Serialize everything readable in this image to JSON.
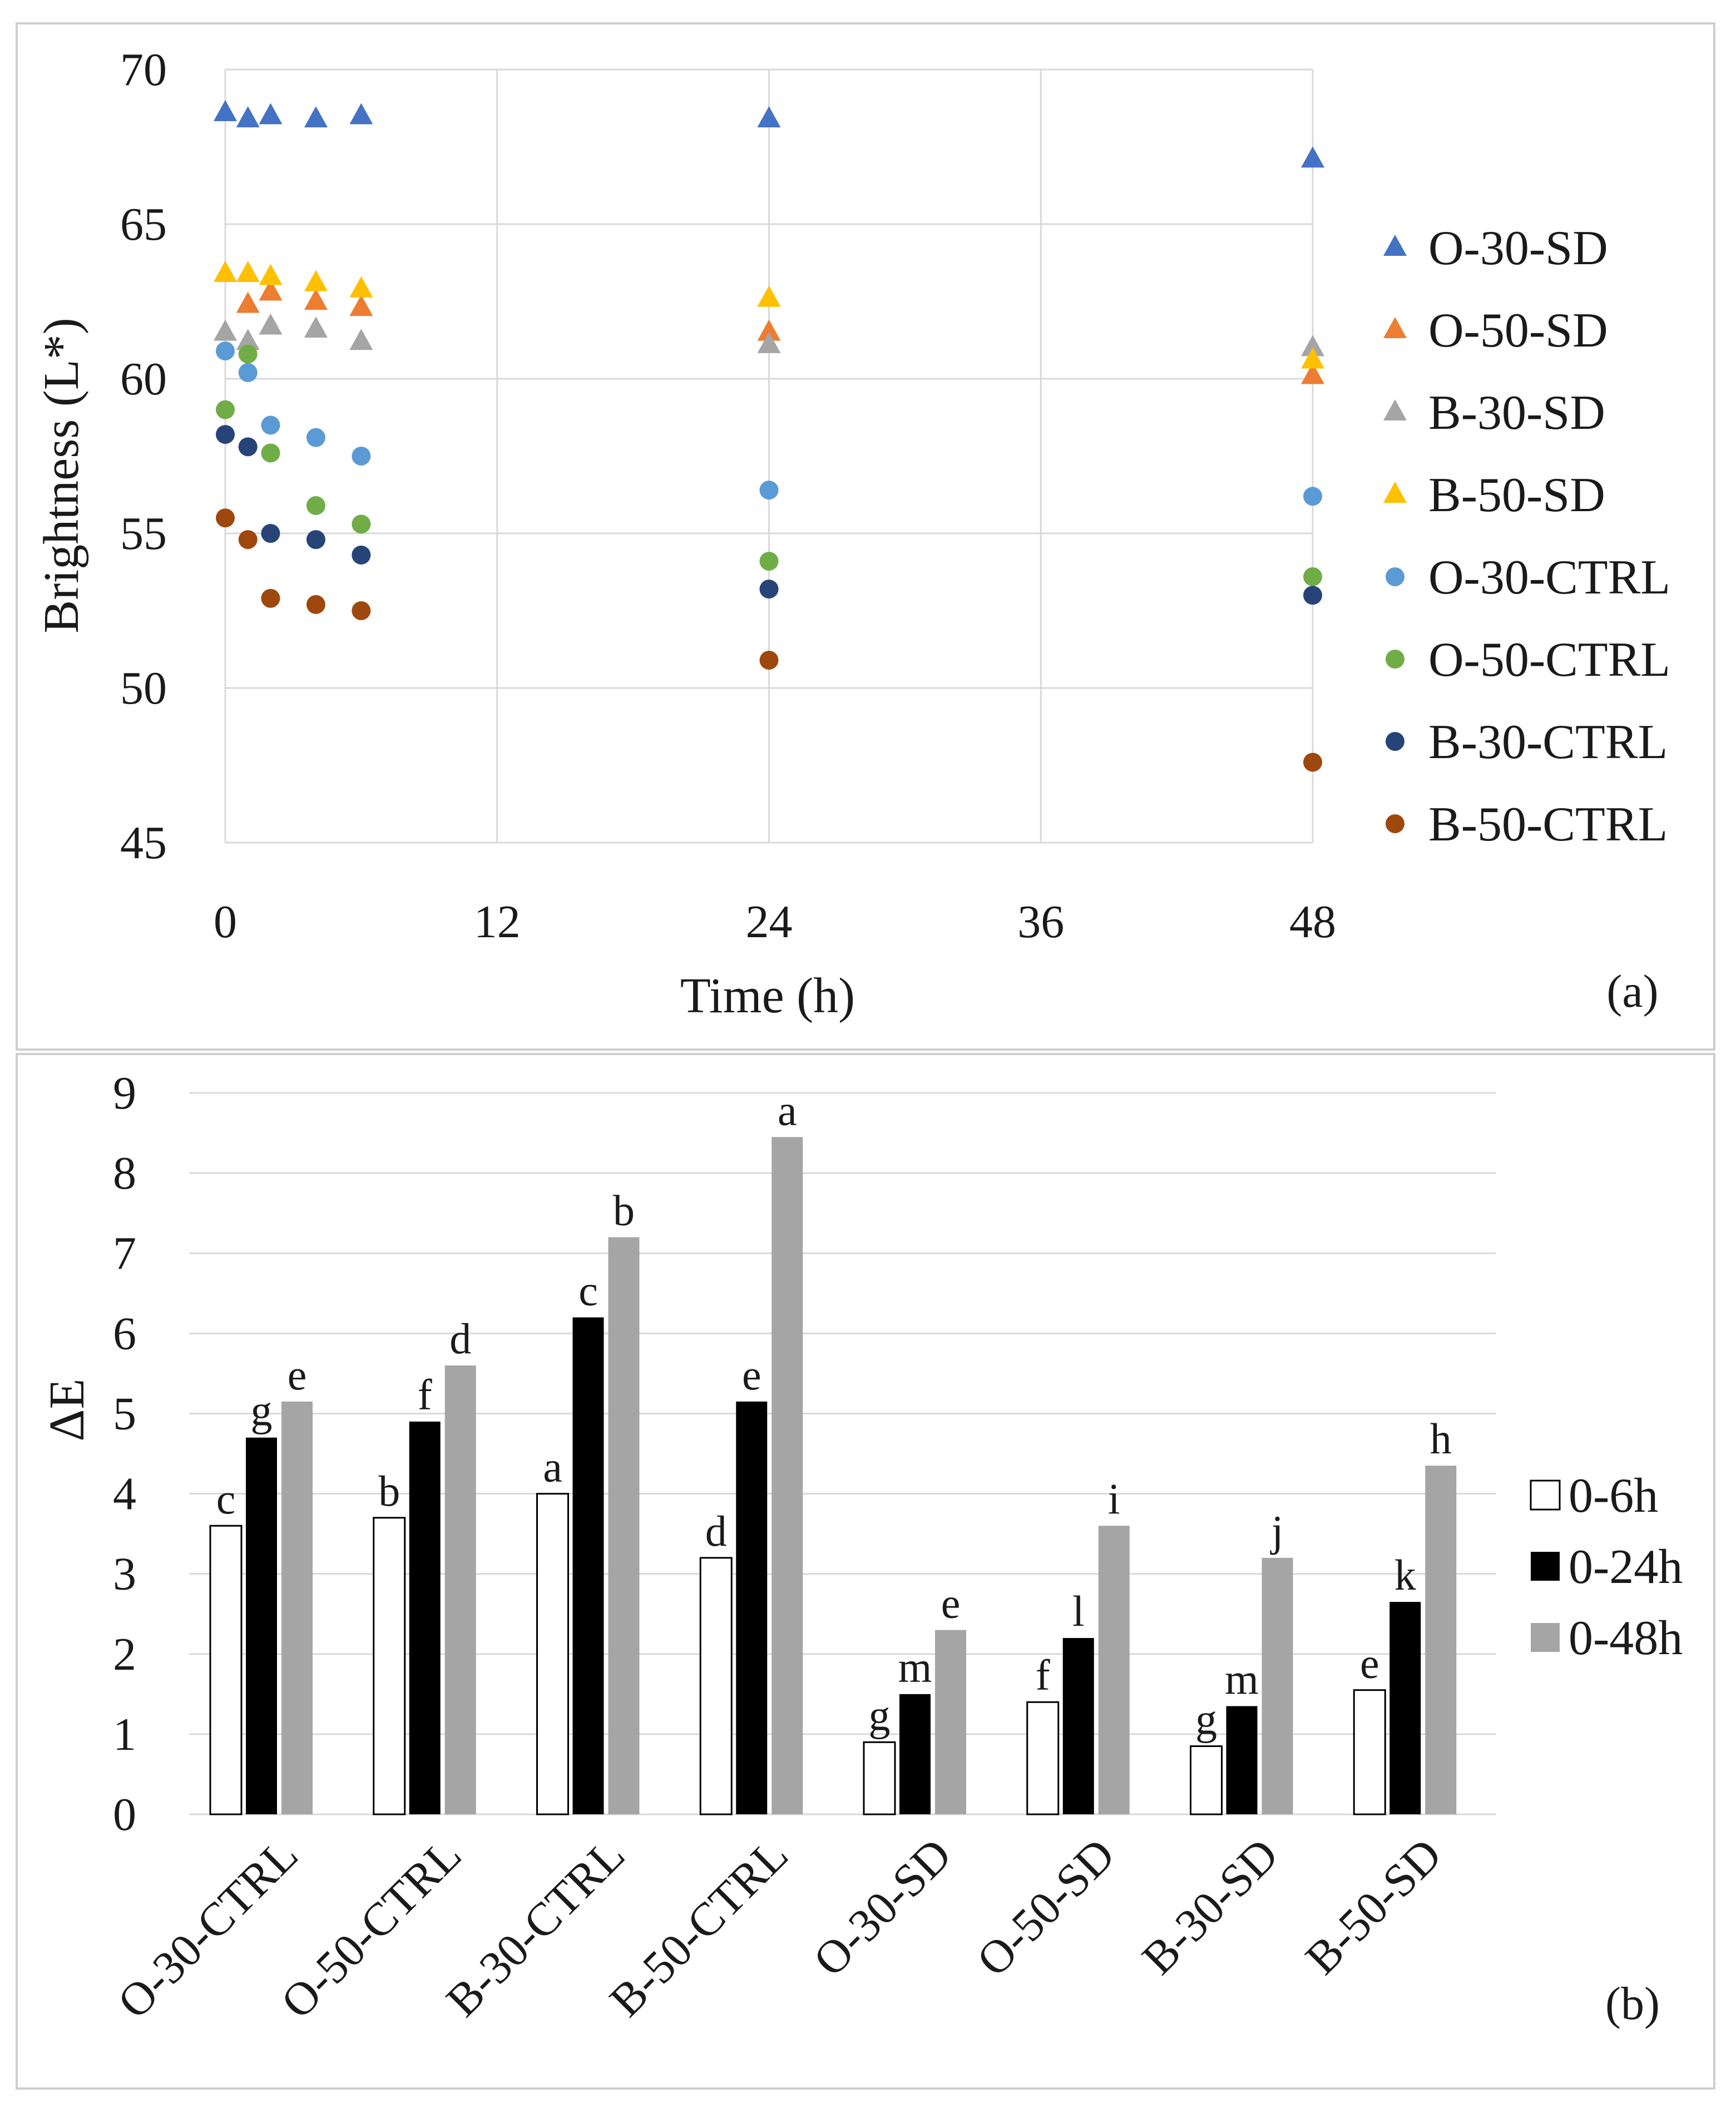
{
  "colors": {
    "O-30-SD": "#4472c4",
    "O-50-SD": "#ed7d31",
    "B-30-SD": "#a5a5a5",
    "B-50-SD": "#ffc000",
    "O-30-CTRL": "#5b9bd5",
    "O-50-CTRL": "#70ad47",
    "B-30-CTRL": "#264478",
    "B-50-CTRL": "#9e480e",
    "bar_0_6h": "#ffffff",
    "bar_0_24h": "#000000",
    "bar_0_48h": "#a5a5a5"
  },
  "chart_data": [
    {
      "type": "scatter",
      "panel_label": "(a)",
      "title": "",
      "xlabel": "Time (h)",
      "ylabel": "Brightness (L*)",
      "xlim": [
        0,
        48
      ],
      "ylim": [
        45,
        70
      ],
      "xticks": [
        0,
        12,
        24,
        36,
        48
      ],
      "yticks": [
        45,
        50,
        55,
        60,
        65,
        70
      ],
      "grid": true,
      "legend_position": "right",
      "series": [
        {
          "name": "O-30-SD",
          "marker": "triangle",
          "x": [
            0,
            1,
            2,
            4,
            6,
            24,
            48
          ],
          "y": [
            68.6,
            68.4,
            68.5,
            68.4,
            68.5,
            68.4,
            67.1
          ]
        },
        {
          "name": "O-50-SD",
          "marker": "triangle",
          "x": [
            0,
            1,
            2,
            4,
            6,
            24,
            48
          ],
          "y": [
            63.4,
            62.4,
            62.8,
            62.5,
            62.3,
            61.5,
            60.1
          ]
        },
        {
          "name": "B-30-SD",
          "marker": "triangle",
          "x": [
            0,
            1,
            2,
            4,
            6,
            24,
            48
          ],
          "y": [
            61.5,
            61.2,
            61.7,
            61.6,
            61.2,
            61.1,
            61.0
          ]
        },
        {
          "name": "B-50-SD",
          "marker": "triangle",
          "x": [
            0,
            1,
            2,
            4,
            6,
            24,
            48
          ],
          "y": [
            63.4,
            63.4,
            63.3,
            63.1,
            62.9,
            62.6,
            60.6
          ]
        },
        {
          "name": "O-30-CTRL",
          "marker": "circle",
          "x": [
            0,
            1,
            2,
            4,
            6,
            24,
            48
          ],
          "y": [
            60.9,
            60.2,
            58.5,
            58.1,
            57.5,
            56.4,
            56.2
          ]
        },
        {
          "name": "O-50-CTRL",
          "marker": "circle",
          "x": [
            0,
            1,
            2,
            4,
            6,
            24,
            48
          ],
          "y": [
            59.0,
            60.8,
            57.6,
            55.9,
            55.3,
            54.1,
            53.6
          ]
        },
        {
          "name": "B-30-CTRL",
          "marker": "circle",
          "x": [
            0,
            1,
            2,
            4,
            6,
            24,
            48
          ],
          "y": [
            58.2,
            57.8,
            55.0,
            54.8,
            54.3,
            53.2,
            53.0
          ]
        },
        {
          "name": "B-50-CTRL",
          "marker": "circle",
          "x": [
            0,
            1,
            2,
            4,
            6,
            24,
            48
          ],
          "y": [
            55.5,
            54.8,
            52.9,
            52.7,
            52.5,
            50.9,
            47.6
          ]
        }
      ]
    },
    {
      "type": "bar",
      "panel_label": "(b)",
      "title": "",
      "xlabel": "",
      "ylabel": "ΔE",
      "ylim": [
        0,
        9
      ],
      "yticks": [
        0,
        1,
        2,
        3,
        4,
        5,
        6,
        7,
        8,
        9
      ],
      "grid": true,
      "legend_position": "right",
      "categories": [
        "O-30-CTRL",
        "O-50-CTRL",
        "B-30-CTRL",
        "B-50-CTRL",
        "O-30-SD",
        "O-50-SD",
        "B-30-SD",
        "B-50-SD"
      ],
      "series": [
        {
          "name": "0-6h",
          "values": [
            3.6,
            3.7,
            4.0,
            3.2,
            0.9,
            1.4,
            0.85,
            1.55
          ],
          "letters": [
            "c",
            "b",
            "a",
            "d",
            "g",
            "f",
            "g",
            "e"
          ]
        },
        {
          "name": "0-24h",
          "values": [
            4.7,
            4.9,
            6.2,
            5.15,
            1.5,
            2.2,
            1.35,
            2.65
          ],
          "letters": [
            "g",
            "f",
            "c",
            "e",
            "m",
            "l",
            "m",
            "k"
          ]
        },
        {
          "name": "0-48h",
          "values": [
            5.15,
            5.6,
            7.2,
            8.45,
            2.3,
            3.6,
            3.2,
            4.35
          ],
          "letters": [
            "e",
            "d",
            "b",
            "a",
            "e",
            "i",
            "j",
            "h"
          ]
        }
      ]
    }
  ]
}
